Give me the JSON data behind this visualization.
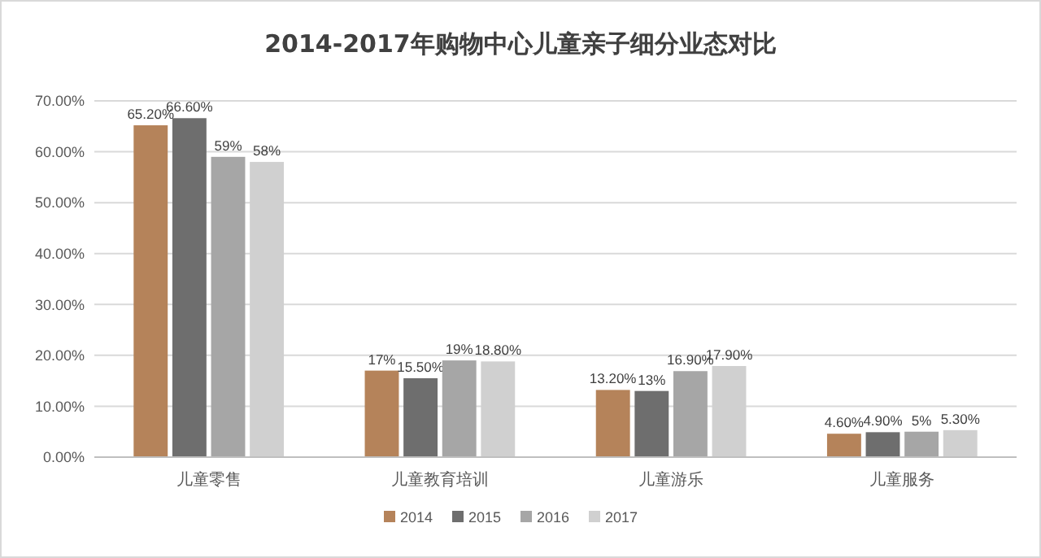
{
  "chart_data": {
    "type": "bar",
    "title": "2014-2017年购物中心儿童亲子细分业态对比",
    "categories": [
      "儿童零售",
      "儿童教育培训",
      "儿童游乐",
      "儿童服务"
    ],
    "series": [
      {
        "name": "2014",
        "color": "#b5835a",
        "values": [
          65.2,
          17,
          13.2,
          4.6
        ],
        "value_labels": [
          "65.20%",
          "17%",
          "13.20%",
          "4.60%"
        ]
      },
      {
        "name": "2015",
        "color": "#6e6e6e",
        "values": [
          66.6,
          15.5,
          13,
          4.9
        ],
        "value_labels": [
          "66.60%",
          "15.50%",
          "13%",
          "4.90%"
        ]
      },
      {
        "name": "2016",
        "color": "#a6a6a6",
        "values": [
          59,
          19,
          16.9,
          5
        ],
        "value_labels": [
          "59%",
          "19%",
          "16.90%",
          "5%"
        ]
      },
      {
        "name": "2017",
        "color": "#d0d0d0",
        "values": [
          58,
          18.8,
          17.9,
          5.3
        ],
        "value_labels": [
          "58%",
          "18.80%",
          "17.90%",
          "5.30%"
        ]
      }
    ],
    "ylim": [
      0,
      70
    ],
    "yticks": [
      {
        "value": 0,
        "label": "0.00%"
      },
      {
        "value": 10,
        "label": "10.00%"
      },
      {
        "value": 20,
        "label": "20.00%"
      },
      {
        "value": 30,
        "label": "30.00%"
      },
      {
        "value": 40,
        "label": "40.00%"
      },
      {
        "value": 50,
        "label": "50.00%"
      },
      {
        "value": 60,
        "label": "60.00%"
      },
      {
        "value": 70,
        "label": "70.00%"
      }
    ],
    "grid": "y",
    "legend": "bottom"
  }
}
